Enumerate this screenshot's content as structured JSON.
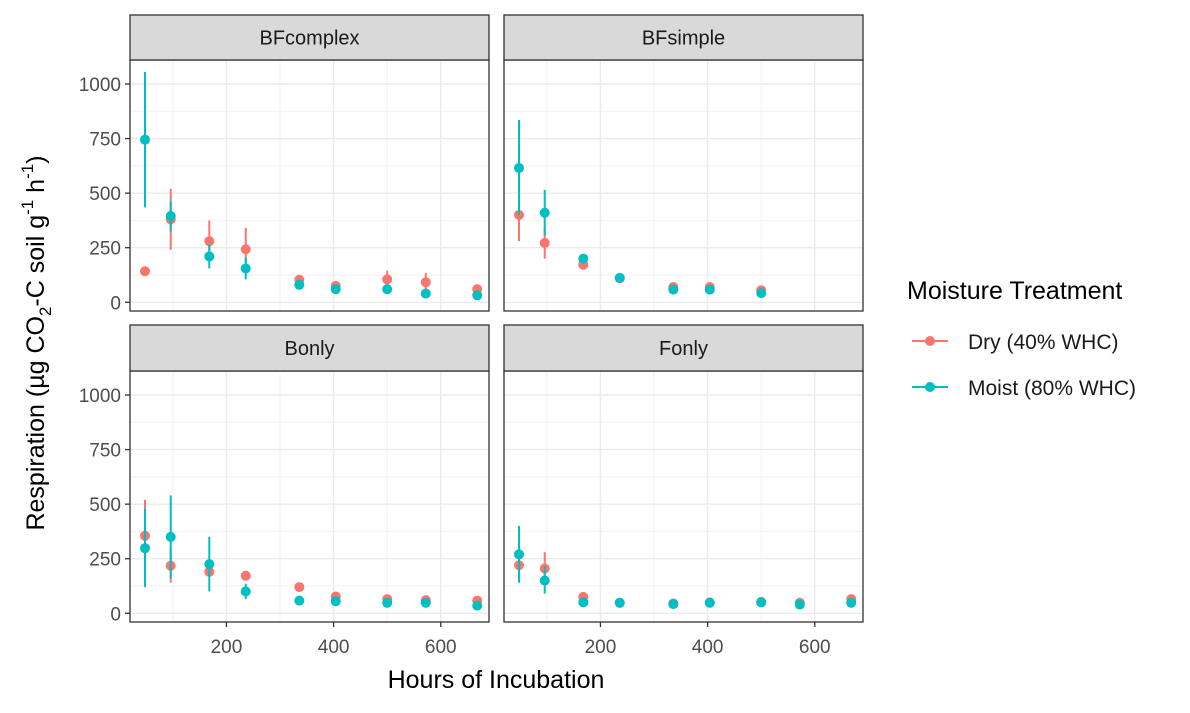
{
  "chart_data": {
    "type": "scatter",
    "subtype": "faceted point plot with error bars",
    "ylabel_main": "Respiration (µg CO",
    "ylabel_sub": "2",
    "ylabel_mid": "-C soil g",
    "ylabel_sup1": "-1",
    "ylabel_h": " h",
    "ylabel_sup2": "-1",
    "ylabel_end": ")",
    "xlabel": "Hours of Incubation",
    "xlim": [
      20,
      690
    ],
    "ylim": [
      -40,
      1110
    ],
    "x_ticks": [
      200,
      400,
      600
    ],
    "y_ticks": [
      0,
      250,
      500,
      750,
      1000
    ],
    "grid": true,
    "legend": {
      "title": "Moisture Treatment",
      "position": "right",
      "entries": [
        {
          "label": "Dry (40% WHC)",
          "color": "#F8766D"
        },
        {
          "label": "Moist (80% WHC)",
          "color": "#00BFC4"
        }
      ]
    },
    "panels": [
      {
        "title": "BFcomplex",
        "series": [
          {
            "name": "Dry (40% WHC)",
            "color": "#F8766D",
            "points": [
              {
                "x": 48,
                "y": 142,
                "lo": 142,
                "hi": 142
              },
              {
                "x": 96,
                "y": 380,
                "lo": 240,
                "hi": 520
              },
              {
                "x": 168,
                "y": 280,
                "lo": 185,
                "hi": 375
              },
              {
                "x": 236,
                "y": 243,
                "lo": 150,
                "hi": 340
              },
              {
                "x": 336,
                "y": 103,
                "lo": 103,
                "hi": 103
              },
              {
                "x": 404,
                "y": 75,
                "lo": 75,
                "hi": 75
              },
              {
                "x": 500,
                "y": 105,
                "lo": 65,
                "hi": 145
              },
              {
                "x": 572,
                "y": 92,
                "lo": 50,
                "hi": 135
              },
              {
                "x": 668,
                "y": 60,
                "lo": 60,
                "hi": 60
              }
            ]
          },
          {
            "name": "Moist (80% WHC)",
            "color": "#00BFC4",
            "points": [
              {
                "x": 48,
                "y": 745,
                "lo": 435,
                "hi": 1055
              },
              {
                "x": 96,
                "y": 395,
                "lo": 325,
                "hi": 465
              },
              {
                "x": 168,
                "y": 210,
                "lo": 155,
                "hi": 265
              },
              {
                "x": 236,
                "y": 155,
                "lo": 105,
                "hi": 205
              },
              {
                "x": 336,
                "y": 80,
                "lo": 80,
                "hi": 80
              },
              {
                "x": 404,
                "y": 60,
                "lo": 60,
                "hi": 60
              },
              {
                "x": 500,
                "y": 60,
                "lo": 60,
                "hi": 60
              },
              {
                "x": 572,
                "y": 40,
                "lo": 40,
                "hi": 40
              },
              {
                "x": 668,
                "y": 32,
                "lo": 32,
                "hi": 32
              }
            ]
          }
        ]
      },
      {
        "title": "BFsimple",
        "series": [
          {
            "name": "Dry (40% WHC)",
            "color": "#F8766D",
            "points": [
              {
                "x": 48,
                "y": 400,
                "lo": 280,
                "hi": 520
              },
              {
                "x": 96,
                "y": 272,
                "lo": 200,
                "hi": 345
              },
              {
                "x": 168,
                "y": 172,
                "lo": 172,
                "hi": 172
              },
              {
                "x": 236,
                "y": 110,
                "lo": 110,
                "hi": 110
              },
              {
                "x": 336,
                "y": 70,
                "lo": 70,
                "hi": 70
              },
              {
                "x": 404,
                "y": 70,
                "lo": 70,
                "hi": 70
              },
              {
                "x": 500,
                "y": 55,
                "lo": 55,
                "hi": 55
              }
            ]
          },
          {
            "name": "Moist (80% WHC)",
            "color": "#00BFC4",
            "points": [
              {
                "x": 48,
                "y": 615,
                "lo": 400,
                "hi": 835
              },
              {
                "x": 96,
                "y": 410,
                "lo": 305,
                "hi": 515
              },
              {
                "x": 168,
                "y": 200,
                "lo": 200,
                "hi": 200
              },
              {
                "x": 236,
                "y": 112,
                "lo": 112,
                "hi": 112
              },
              {
                "x": 336,
                "y": 58,
                "lo": 58,
                "hi": 58
              },
              {
                "x": 404,
                "y": 58,
                "lo": 58,
                "hi": 58
              },
              {
                "x": 500,
                "y": 42,
                "lo": 42,
                "hi": 42
              }
            ]
          }
        ]
      },
      {
        "title": "Bonly",
        "series": [
          {
            "name": "Dry (40% WHC)",
            "color": "#F8766D",
            "points": [
              {
                "x": 48,
                "y": 355,
                "lo": 190,
                "hi": 520
              },
              {
                "x": 96,
                "y": 218,
                "lo": 140,
                "hi": 295
              },
              {
                "x": 168,
                "y": 190,
                "lo": 190,
                "hi": 190
              },
              {
                "x": 236,
                "y": 172,
                "lo": 172,
                "hi": 172
              },
              {
                "x": 336,
                "y": 120,
                "lo": 120,
                "hi": 120
              },
              {
                "x": 404,
                "y": 77,
                "lo": 77,
                "hi": 77
              },
              {
                "x": 500,
                "y": 65,
                "lo": 65,
                "hi": 65
              },
              {
                "x": 572,
                "y": 60,
                "lo": 60,
                "hi": 60
              },
              {
                "x": 668,
                "y": 58,
                "lo": 58,
                "hi": 58
              }
            ]
          },
          {
            "name": "Moist (80% WHC)",
            "color": "#00BFC4",
            "points": [
              {
                "x": 48,
                "y": 298,
                "lo": 120,
                "hi": 480
              },
              {
                "x": 96,
                "y": 350,
                "lo": 160,
                "hi": 540
              },
              {
                "x": 168,
                "y": 225,
                "lo": 100,
                "hi": 350
              },
              {
                "x": 236,
                "y": 100,
                "lo": 65,
                "hi": 135
              },
              {
                "x": 336,
                "y": 58,
                "lo": 58,
                "hi": 58
              },
              {
                "x": 404,
                "y": 55,
                "lo": 55,
                "hi": 55
              },
              {
                "x": 500,
                "y": 48,
                "lo": 48,
                "hi": 48
              },
              {
                "x": 572,
                "y": 48,
                "lo": 48,
                "hi": 48
              },
              {
                "x": 668,
                "y": 35,
                "lo": 35,
                "hi": 35
              }
            ]
          }
        ]
      },
      {
        "title": "Fonly",
        "series": [
          {
            "name": "Dry (40% WHC)",
            "color": "#F8766D",
            "points": [
              {
                "x": 48,
                "y": 220,
                "lo": 220,
                "hi": 220
              },
              {
                "x": 96,
                "y": 205,
                "lo": 135,
                "hi": 280
              },
              {
                "x": 168,
                "y": 75,
                "lo": 75,
                "hi": 75
              },
              {
                "x": 236,
                "y": 48,
                "lo": 48,
                "hi": 48
              },
              {
                "x": 336,
                "y": 45,
                "lo": 45,
                "hi": 45
              },
              {
                "x": 404,
                "y": 50,
                "lo": 50,
                "hi": 50
              },
              {
                "x": 500,
                "y": 52,
                "lo": 52,
                "hi": 52
              },
              {
                "x": 572,
                "y": 48,
                "lo": 48,
                "hi": 48
              },
              {
                "x": 668,
                "y": 65,
                "lo": 65,
                "hi": 65
              }
            ]
          },
          {
            "name": "Moist (80% WHC)",
            "color": "#00BFC4",
            "points": [
              {
                "x": 48,
                "y": 270,
                "lo": 140,
                "hi": 400
              },
              {
                "x": 96,
                "y": 150,
                "lo": 90,
                "hi": 215
              },
              {
                "x": 168,
                "y": 50,
                "lo": 50,
                "hi": 50
              },
              {
                "x": 236,
                "y": 48,
                "lo": 48,
                "hi": 48
              },
              {
                "x": 336,
                "y": 42,
                "lo": 42,
                "hi": 42
              },
              {
                "x": 404,
                "y": 48,
                "lo": 48,
                "hi": 48
              },
              {
                "x": 500,
                "y": 50,
                "lo": 50,
                "hi": 50
              },
              {
                "x": 572,
                "y": 40,
                "lo": 40,
                "hi": 40
              },
              {
                "x": 668,
                "y": 48,
                "lo": 48,
                "hi": 48
              }
            ]
          }
        ]
      }
    ]
  }
}
